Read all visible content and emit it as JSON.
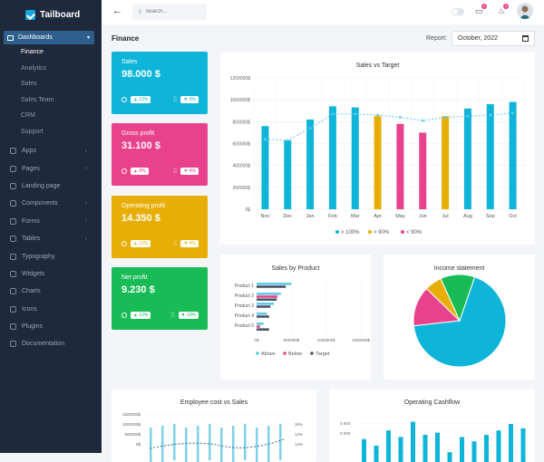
{
  "brand": {
    "name": "Tailboard"
  },
  "sidebar": {
    "active": {
      "label": "Dashboards"
    },
    "sub_items": [
      {
        "label": "Finance",
        "active": true
      },
      {
        "label": "Analytics"
      },
      {
        "label": "Sales"
      },
      {
        "label": "Sales Team"
      },
      {
        "label": "CRM"
      },
      {
        "label": "Support"
      }
    ],
    "items": [
      {
        "label": "Apps",
        "icon": "apps-icon",
        "chevron": true
      },
      {
        "label": "Pages",
        "icon": "pages-icon",
        "chevron": true
      },
      {
        "label": "Landing page",
        "icon": "landing-icon",
        "chevron": false
      },
      {
        "label": "Components",
        "icon": "components-icon",
        "chevron": true
      },
      {
        "label": "Forms",
        "icon": "forms-icon",
        "chevron": true
      },
      {
        "label": "Tables",
        "icon": "tables-icon",
        "chevron": true
      },
      {
        "label": "Typography",
        "icon": "typography-icon",
        "chevron": false
      },
      {
        "label": "Widgets",
        "icon": "widgets-icon",
        "chevron": false
      },
      {
        "label": "Charts",
        "icon": "charts-icon",
        "chevron": false
      },
      {
        "label": "Icons",
        "icon": "icons-icon",
        "chevron": false
      },
      {
        "label": "Plugins",
        "icon": "plugins-icon",
        "chevron": false
      },
      {
        "label": "Documentation",
        "icon": "documentation-icon",
        "chevron": false
      }
    ]
  },
  "header": {
    "search_placeholder": "Search...",
    "messages_count": "2",
    "notifications_count": "3"
  },
  "page": {
    "title": "Finance",
    "report_label": "Report:",
    "report_value": "October, 2022"
  },
  "colors": {
    "cyan": "#0fb5d8",
    "yellow": "#e7ae06",
    "pink": "#e8428c",
    "green": "#19bb56",
    "navy": "#4b5566"
  },
  "kpis": [
    {
      "label": "Sales",
      "value": "98.000 $",
      "chip1": "▲ 12%",
      "chip2": "▼ 3%",
      "color": "#0fb5d8"
    },
    {
      "label": "Gross profit",
      "value": "31.100 $",
      "chip1": "▲ 8%",
      "chip2": "▼ 4%",
      "color": "#e8428c"
    },
    {
      "label": "Operating profit",
      "value": "14.350 $",
      "chip1": "▲ 11%",
      "chip2": "▼ 4%",
      "color": "#e7ae06"
    },
    {
      "label": "Net profit",
      "value": "9.230 $",
      "chip1": "▲ 12%",
      "chip2": "▼ 10%",
      "color": "#19bb56"
    }
  ],
  "chart_data": [
    {
      "type": "bar",
      "title": "Sales vs Target",
      "categories": [
        "Nov",
        "Dec",
        "Jan",
        "Feb",
        "Mar",
        "Apr",
        "May",
        "Jun",
        "Jul",
        "Aug",
        "Sep",
        "Oct"
      ],
      "series": [
        {
          "name": "> 100%",
          "values": [
            760000,
            630000,
            820000,
            940000,
            930000,
            0,
            0,
            0,
            0,
            920000,
            960000,
            980000
          ]
        },
        {
          "name": "> 90%",
          "values": [
            0,
            0,
            0,
            0,
            0,
            850000,
            0,
            0,
            850000,
            0,
            0,
            0
          ]
        },
        {
          "name": "< 90%",
          "values": [
            0,
            0,
            0,
            0,
            0,
            0,
            780000,
            700000,
            0,
            0,
            0,
            0
          ]
        }
      ],
      "target": [
        640000,
        630000,
        740000,
        870000,
        870000,
        860000,
        840000,
        810000,
        840000,
        850000,
        860000,
        880000
      ],
      "yticks": [
        "0$",
        "200000$",
        "400000$",
        "600000$",
        "800000$",
        "1000000$",
        "1200000$"
      ],
      "ylim": [
        0,
        1200000
      ]
    },
    {
      "type": "bar",
      "title": "Sales by Product",
      "categories": [
        "Product 1",
        "Product 2",
        "Product 3",
        "Product 4",
        "Product 5"
      ],
      "series": [
        {
          "name": "Above",
          "values": [
            500000,
            350000,
            250000,
            150000,
            100000
          ]
        },
        {
          "name": "Below",
          "values": [
            0,
            300000,
            0,
            0,
            50000
          ]
        },
        {
          "name": "Target",
          "values": [
            420000,
            290000,
            200000,
            180000,
            180000
          ]
        }
      ],
      "xticks": [
        "0$",
        "500000$",
        "1000000$",
        "1500000$"
      ],
      "xlim": [
        0,
        1500000
      ]
    },
    {
      "type": "pie",
      "title": "Income statement",
      "values": [
        68,
        14,
        6,
        12
      ]
    },
    {
      "type": "bar",
      "title": "Employee cost vs Sales",
      "yticks": [
        "0$",
        "500000$",
        "1000000$",
        "1500000$"
      ],
      "y2ticks": [
        "12%",
        "14%",
        "16%"
      ]
    },
    {
      "type": "bar",
      "title": "Operating Cashflow",
      "yticks": [
        "3 000",
        "4 000"
      ],
      "values": [
        2.8,
        2.5,
        3.2,
        2.9,
        3.6,
        3.0,
        3.1,
        2.2,
        2.9,
        2.7,
        3.0,
        3.2,
        3.5,
        3.3
      ]
    }
  ]
}
